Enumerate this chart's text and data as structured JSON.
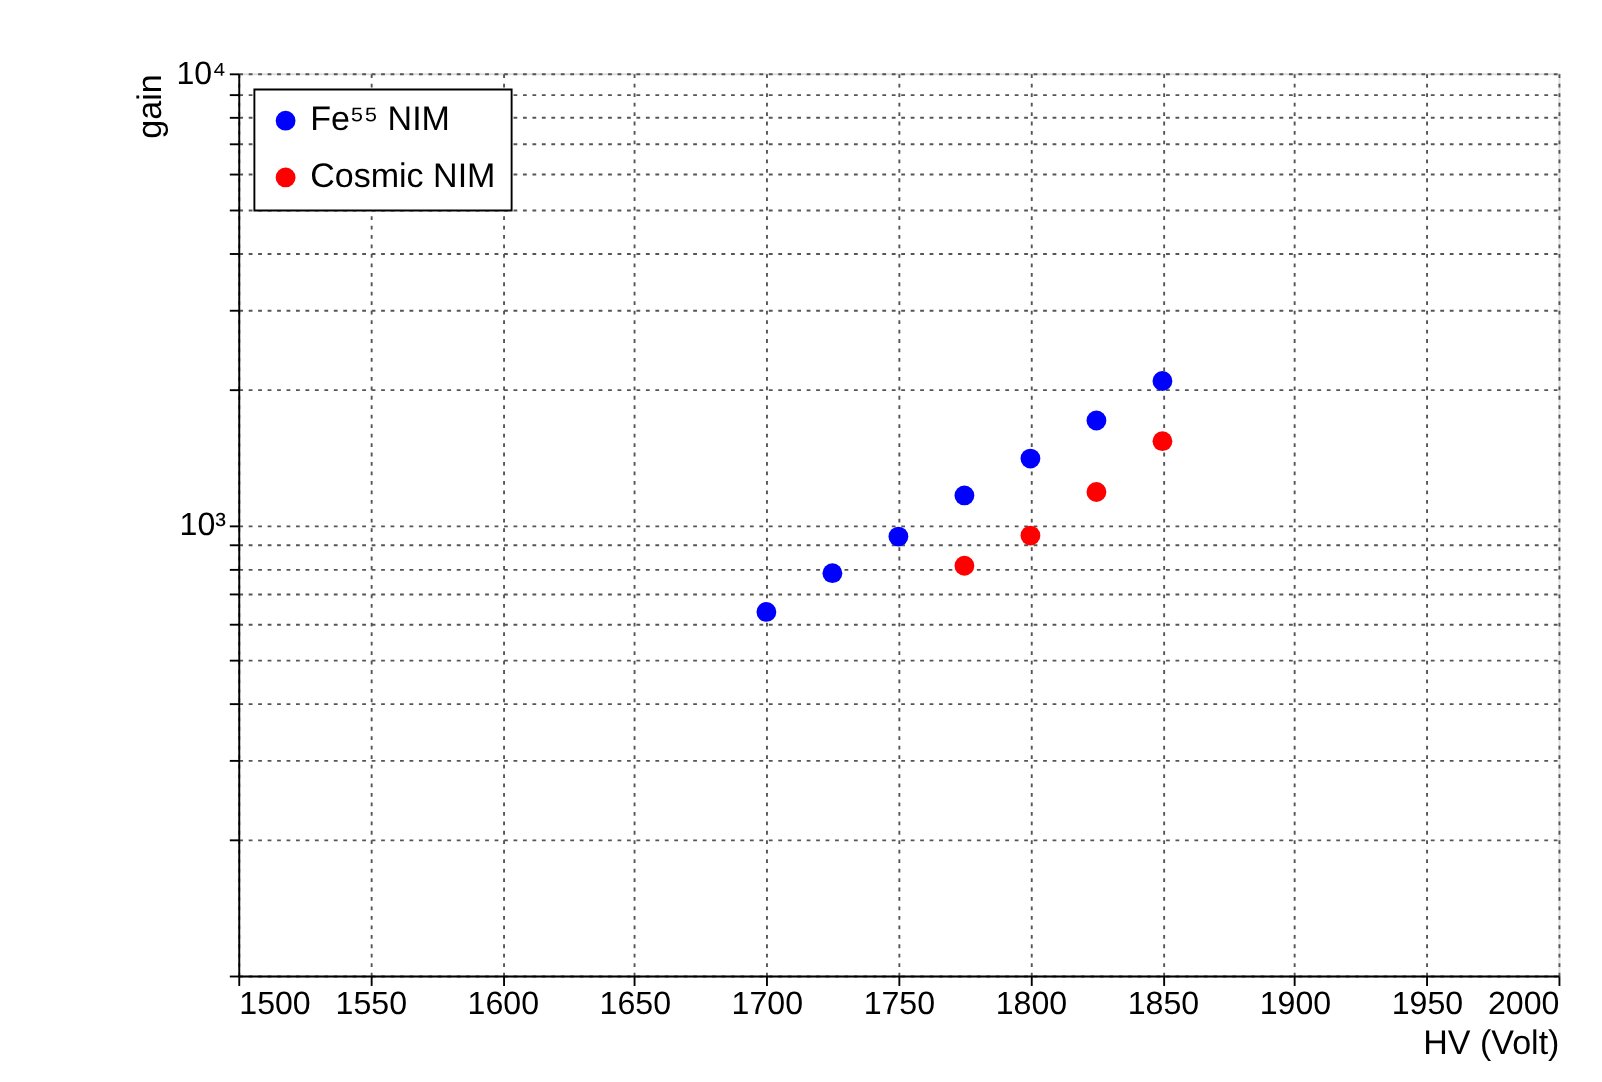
{
  "chart_data": {
    "type": "scatter",
    "xlabel": "HV (Volt)",
    "ylabel": "gain",
    "series": [
      {
        "name": "Fe⁵⁵ NIM",
        "color": "#0000ff",
        "x": [
          1700,
          1725,
          1750,
          1775,
          1800,
          1825,
          1850
        ],
        "values": [
          640,
          780,
          940,
          1160,
          1400,
          1700,
          2080
        ]
      },
      {
        "name": "Cosmic NIM",
        "color": "#ff0000",
        "x": [
          1775,
          1800,
          1825,
          1850
        ],
        "values": [
          810,
          945,
          1180,
          1530
        ]
      }
    ],
    "xlim": [
      1500,
      2000
    ],
    "xticks": [
      1500,
      1550,
      1600,
      1650,
      1700,
      1750,
      1800,
      1850,
      1900,
      1950,
      2000
    ],
    "ylim": [
      100,
      10000
    ],
    "log": "y",
    "yticks": [
      {
        "value": 100,
        "label": null
      },
      {
        "value": 200,
        "label": null
      },
      {
        "value": 300,
        "label": null
      },
      {
        "value": 400,
        "label": null
      },
      {
        "value": 500,
        "label": null
      },
      {
        "value": 600,
        "label": null
      },
      {
        "value": 700,
        "label": null
      },
      {
        "value": 800,
        "label": null
      },
      {
        "value": 900,
        "label": null
      },
      {
        "value": 1000,
        "label": "10³"
      },
      {
        "value": 2000,
        "label": null
      },
      {
        "value": 3000,
        "label": null
      },
      {
        "value": 4000,
        "label": null
      },
      {
        "value": 5000,
        "label": null
      },
      {
        "value": 6000,
        "label": null
      },
      {
        "value": 7000,
        "label": null
      },
      {
        "value": 8000,
        "label": null
      },
      {
        "value": 9000,
        "label": null
      },
      {
        "value": 10000,
        "label": "10⁴"
      }
    ],
    "grid": true,
    "legend": "top left",
    "marker": "circle"
  }
}
